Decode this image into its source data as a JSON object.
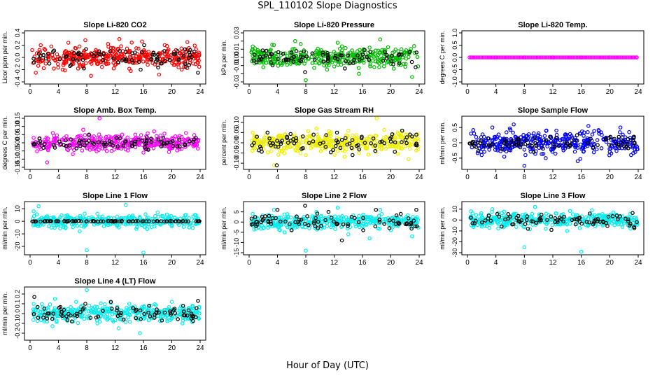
{
  "page": {
    "title": "SPL_110102  Slope Diagnostics",
    "xlabel": "Hour of Day (UTC)"
  },
  "chart_data": [
    {
      "type": "scatter",
      "title": "Slope Li-820 CO2",
      "ylabel": "Licor ppm per min.",
      "color": "#ff0000",
      "xlim": [
        0,
        24
      ],
      "ylim": [
        -0.4,
        0.4
      ],
      "xticks": [
        0,
        4,
        8,
        12,
        16,
        20,
        24
      ],
      "yticks": [
        -0.4,
        -0.2,
        0.0,
        0.2,
        0.4
      ],
      "ytick_labels": [
        "-0.4",
        "-0.2",
        "0.0",
        "0.2",
        "0.4"
      ],
      "spread": 0.16,
      "black_spread": 0.14,
      "seed": 11,
      "series": [
        {
          "color": "#ff0000",
          "x": [
            0.3,
            0.8,
            1.5,
            2.2,
            3.0,
            3.8,
            4.6,
            5.4,
            6.2,
            7.0,
            7.8,
            8.6,
            9.4,
            10.2,
            11.0,
            11.8,
            12.6,
            13.4,
            14.2,
            15.0,
            15.8,
            16.6,
            17.4,
            18.2,
            19.0,
            19.8,
            20.6,
            21.4,
            22.2,
            23.0,
            23.8
          ],
          "y": [
            0.12,
            -0.25,
            0.2,
            -0.1,
            0.18,
            0.05,
            -0.2,
            0.24,
            0.02,
            -0.12,
            0.28,
            -0.3,
            0.1,
            -0.05,
            0.22,
            -0.18,
            0.3,
            0.0,
            -0.22,
            0.15,
            0.26,
            -0.12,
            0.08,
            -0.28,
            0.2,
            -0.05,
            0.12,
            -0.2,
            0.25,
            -0.1,
            0.05
          ]
        },
        {
          "color": "#000000",
          "x": [
            0.5,
            1.9,
            4.2,
            6.8,
            7.6,
            9.0,
            11.3,
            13.0,
            14.8,
            15.6,
            16.1,
            18.5,
            20.3,
            22.6,
            23.7
          ],
          "y": [
            -0.02,
            0.04,
            -0.03,
            0.05,
            -0.18,
            0.02,
            0.1,
            -0.05,
            0.08,
            -0.2,
            0.2,
            -0.1,
            0.06,
            0.12,
            -0.25
          ]
        }
      ]
    },
    {
      "type": "scatter",
      "title": "Slope Li-820 Pressure",
      "ylabel": "kPa per min.",
      "color": "#00bb00",
      "xlim": [
        0,
        24
      ],
      "ylim": [
        -0.03,
        0.03
      ],
      "xticks": [
        0,
        4,
        8,
        12,
        16,
        20,
        24
      ],
      "yticks": [
        -0.03,
        -0.01,
        0.01,
        0.03
      ],
      "ytick_labels": [
        "-0.03",
        "-0.01",
        "0.01",
        "0.03"
      ],
      "ytick_minor": [
        -0.02,
        0.0,
        0.02
      ],
      "ytick_minor_labels": [
        "",
        "0.00",
        ""
      ],
      "spread": 0.011,
      "black_spread": 0.009,
      "seed": 23,
      "series": [
        {
          "color": "#00bb00",
          "x": [
            0.5,
            2.0,
            3.5,
            5.0,
            6.5,
            8.0,
            9.5,
            11.0,
            12.5,
            14.0,
            15.5,
            17.0,
            18.5,
            20.0,
            21.5,
            23.0
          ],
          "y": [
            0.01,
            -0.012,
            0.015,
            -0.005,
            0.02,
            -0.028,
            0.008,
            -0.015,
            0.018,
            0.005,
            -0.02,
            0.012,
            0.022,
            -0.008,
            0.01,
            -0.024
          ]
        },
        {
          "color": "#000000",
          "x": [
            1.0,
            3.2,
            5.6,
            7.9,
            10.4,
            12.2,
            14.7,
            16.3,
            18.9,
            21.1,
            23.5
          ],
          "y": [
            -0.006,
            0.004,
            -0.003,
            -0.018,
            0.006,
            0.002,
            -0.007,
            0.009,
            -0.004,
            0.003,
            -0.012
          ]
        }
      ]
    },
    {
      "type": "scatter",
      "title": "Slope Li-820 Temp.",
      "ylabel": "degrees C per min.",
      "color": "#ff00ff",
      "xlim": [
        0,
        24
      ],
      "ylim": [
        -1.0,
        1.0
      ],
      "xticks": [
        0,
        4,
        8,
        12,
        16,
        20,
        24
      ],
      "yticks": [
        -1.0,
        -0.5,
        0.0,
        0.5,
        1.0
      ],
      "ytick_labels": [
        "-1.0",
        "-0.5",
        "0.0",
        "0.5",
        "1.0"
      ],
      "spread": 0.0,
      "black_spread": 0.0,
      "seed": 5,
      "series": [
        {
          "color": "#ff00ff",
          "x": [
            0.5,
            4,
            8,
            12,
            16,
            20,
            23.8
          ],
          "y": [
            0,
            0,
            0,
            0,
            0,
            0,
            0
          ]
        }
      ]
    },
    {
      "type": "scatter",
      "title": "Slope Amb. Box Temp.",
      "ylabel": "degrees C per min.",
      "color": "#ff00ff",
      "xlim": [
        0,
        24
      ],
      "ylim": [
        -0.15,
        0.15
      ],
      "xticks": [
        0,
        4,
        8,
        12,
        16,
        20,
        24
      ],
      "yticks": [
        -0.15,
        -0.1,
        -0.05,
        0.0,
        0.05,
        0.1,
        0.15
      ],
      "ytick_labels": [
        "-0.15",
        "-0.10",
        "-0.05",
        "0.00",
        "0.05",
        "0.10",
        "0.15"
      ],
      "spread": 0.045,
      "black_spread": 0.035,
      "seed": 37,
      "series": [
        {
          "color": "#ff00ff",
          "x": [
            0.5,
            1.5,
            2.4,
            3.2,
            4.5,
            6.0,
            7.5,
            9.0,
            9.8,
            11.5,
            13.0,
            14.5,
            16.0,
            17.5,
            19.0,
            20.5,
            22.0,
            23.5
          ],
          "y": [
            0.03,
            -0.04,
            -0.12,
            0.06,
            0.02,
            -0.03,
            0.08,
            0.04,
            0.15,
            -0.05,
            0.05,
            0.01,
            -0.06,
            0.07,
            -0.02,
            0.04,
            0.06,
            -0.01
          ]
        },
        {
          "color": "#000000",
          "x": [
            1.2,
            3.5,
            5.8,
            7.1,
            8.3,
            10.4,
            12.2,
            14.3,
            16.4,
            18.1,
            20.2,
            22.5,
            23.4
          ],
          "y": [
            0.0,
            -0.03,
            0.02,
            -0.02,
            0.05,
            -0.01,
            0.03,
            0.0,
            -0.04,
            0.02,
            -0.02,
            0.01,
            0.03
          ]
        }
      ]
    },
    {
      "type": "scatter",
      "title": "Slope Gas Stream RH",
      "ylabel": "percent per min.",
      "color": "#ffff00",
      "xlim": [
        0,
        24
      ],
      "ylim": [
        -0.12,
        0.12
      ],
      "xticks": [
        0,
        4,
        8,
        12,
        16,
        20,
        24
      ],
      "yticks": [
        -0.1,
        -0.05,
        0.0,
        0.05,
        0.1
      ],
      "ytick_labels": [
        "-0.10",
        "-0.05",
        "0.00",
        "0.05",
        "0.10"
      ],
      "spread": 0.045,
      "black_spread": 0.04,
      "seed": 41,
      "series": [
        {
          "color": "#eeee00",
          "x": [
            0.5,
            2.0,
            3.5,
            5.0,
            6.5,
            8.0,
            9.5,
            11.0,
            12.5,
            14.0,
            15.5,
            17.0,
            18.0,
            19.5,
            21.0,
            22.5,
            23.8
          ],
          "y": [
            0.05,
            -0.03,
            -0.11,
            0.04,
            0.02,
            -0.06,
            0.07,
            0.0,
            -0.04,
            0.06,
            -0.05,
            0.03,
            0.12,
            -0.02,
            0.05,
            -0.08,
            0.02
          ]
        },
        {
          "color": "#000000",
          "x": [
            1.1,
            2.6,
            3.9,
            5.5,
            7.4,
            9.1,
            10.8,
            12.4,
            14.6,
            15.9,
            17.8,
            19.9,
            21.6,
            23.6
          ],
          "y": [
            0.03,
            0.05,
            -0.11,
            0.0,
            -0.03,
            0.04,
            -0.02,
            0.05,
            -0.06,
            0.03,
            -0.04,
            0.02,
            0.06,
            0.04
          ]
        }
      ]
    },
    {
      "type": "scatter",
      "title": "Slope Sample Flow",
      "ylabel": "ml/min per min.",
      "color": "#0000ff",
      "xlim": [
        0,
        24
      ],
      "ylim": [
        -0.8,
        0.8
      ],
      "xticks": [
        0,
        4,
        8,
        12,
        16,
        20,
        24
      ],
      "yticks": [
        -0.5,
        0.0,
        0.5
      ],
      "ytick_labels": [
        "-0.5",
        "0.0",
        "0.5"
      ],
      "spread": 0.35,
      "black_spread": 0.22,
      "seed": 53,
      "series": [
        {
          "color": "#0000ff",
          "x": [
            0.5,
            2.0,
            3.5,
            5.0,
            6.5,
            8.0,
            9.5,
            11.0,
            12.5,
            14.0,
            15.5,
            17.0,
            18.5,
            20.0,
            21.5,
            23.0
          ],
          "y": [
            0.3,
            -0.4,
            0.5,
            -0.2,
            0.6,
            -0.75,
            0.2,
            -0.5,
            0.4,
            0.1,
            -0.6,
            0.55,
            0.3,
            -0.3,
            0.5,
            -0.4
          ]
        },
        {
          "color": "#000000",
          "x": [
            1.0,
            2.9,
            4.8,
            7.2,
            9.3,
            11.6,
            13.9,
            15.4,
            17.7,
            19.5,
            21.8,
            23.4
          ],
          "y": [
            -0.1,
            0.15,
            -0.2,
            0.05,
            -0.3,
            0.2,
            -0.1,
            0.25,
            -0.15,
            0.1,
            -0.05,
            0.2
          ]
        }
      ]
    },
    {
      "type": "scatter",
      "title": "Slope Line 1 Flow",
      "ylabel": "ml/min per min.",
      "color": "#00eeee",
      "xlim": [
        0,
        24
      ],
      "ylim": [
        -25,
        14
      ],
      "xticks": [
        0,
        4,
        8,
        12,
        16,
        20,
        24
      ],
      "yticks": [
        -20,
        -10,
        0,
        10
      ],
      "ytick_labels": [
        "-20",
        "-10",
        "0",
        "10"
      ],
      "spread": 4.5,
      "black_spread": 0.3,
      "seed": 61,
      "series": [
        {
          "color": "#00eeee",
          "x": [
            0.5,
            1.2,
            3.0,
            5.0,
            7.0,
            8.0,
            9.5,
            11.0,
            13.5,
            15.0,
            16.0,
            18.0,
            20.0,
            22.0,
            23.5
          ],
          "y": [
            8,
            12,
            -5,
            4,
            -8,
            -23,
            6,
            -3,
            13,
            -6,
            -25,
            7,
            -4,
            5,
            -2
          ]
        },
        {
          "color": "#000000",
          "x": [
            0.5,
            2,
            4,
            6,
            8,
            10,
            12,
            14,
            16,
            18,
            20,
            22,
            23.8
          ],
          "y": [
            0,
            0,
            0,
            0,
            0,
            0,
            0,
            0,
            0,
            0,
            0,
            0,
            0
          ]
        }
      ]
    },
    {
      "type": "scatter",
      "title": "Slope Line 2 Flow",
      "ylabel": "ml/min per min.",
      "color": "#00eeee",
      "xlim": [
        0,
        24
      ],
      "ylim": [
        -15,
        9
      ],
      "xticks": [
        0,
        4,
        8,
        12,
        16,
        20,
        24
      ],
      "yticks": [
        -15,
        -10,
        -5,
        0,
        5
      ],
      "ytick_labels": [
        "-15",
        "-10",
        "-5",
        "0",
        "5"
      ],
      "spread": 3.2,
      "black_spread": 3.2,
      "seed": 71,
      "series": [
        {
          "color": "#00eeee",
          "x": [
            0.5,
            2.0,
            3.5,
            5.0,
            6.5,
            8.0,
            9.5,
            11.0,
            12.5,
            14.0,
            15.5,
            17.0,
            18.5,
            20.0,
            21.5,
            23.0
          ],
          "y": [
            4,
            -3,
            6,
            -5,
            2,
            -14,
            5,
            -2,
            7,
            -6,
            3,
            -8,
            6,
            -4,
            2,
            -7
          ]
        },
        {
          "color": "#000000",
          "x": [
            1.0,
            2.8,
            4.0,
            6.0,
            7.9,
            9.7,
            11.2,
            13.1,
            14.9,
            16.1,
            17.9,
            19.8,
            21.4,
            22.9,
            23.6
          ],
          "y": [
            -2,
            3,
            6,
            -4,
            8,
            -3,
            5,
            -9,
            2,
            -4,
            6,
            -3,
            4,
            -1,
            6
          ]
        }
      ]
    },
    {
      "type": "scatter",
      "title": "Slope Line 3 Flow",
      "ylabel": "ml/min per min.",
      "color": "#00eeee",
      "xlim": [
        0,
        24
      ],
      "ylim": [
        -30,
        15
      ],
      "xticks": [
        0,
        4,
        8,
        12,
        16,
        20,
        24
      ],
      "yticks": [
        -30,
        -20,
        -10,
        0,
        10
      ],
      "ytick_labels": [
        "-30",
        "-20",
        "-10",
        "0",
        "10"
      ],
      "spread": 6.0,
      "black_spread": 5.5,
      "seed": 83,
      "series": [
        {
          "color": "#00eeee",
          "x": [
            0.5,
            2.0,
            3.5,
            5.0,
            6.5,
            8.0,
            9.5,
            11.0,
            12.5,
            14.0,
            15.5,
            16.0,
            17.5,
            19.0,
            20.5,
            22.0,
            23.5
          ],
          "y": [
            8,
            -6,
            10,
            -4,
            5,
            -25,
            12,
            -8,
            6,
            -10,
            4,
            -29,
            9,
            -5,
            7,
            -3,
            2
          ]
        },
        {
          "color": "#000000",
          "x": [
            1.0,
            3.0,
            4.8,
            6.9,
            8.5,
            10.4,
            11.8,
            13.6,
            15.2,
            17.2,
            19.1,
            21.0,
            22.8,
            23.8
          ],
          "y": [
            -3,
            4,
            -6,
            2,
            -8,
            5,
            -9,
            3,
            -4,
            6,
            -2,
            4,
            -5,
            -2
          ]
        }
      ]
    },
    {
      "type": "scatter",
      "title": "Slope Line 4 (LT) Flow",
      "ylabel": "ml/min per min.",
      "color": "#00eeee",
      "xlim": [
        0,
        24
      ],
      "ylim": [
        -0.25,
        0.25
      ],
      "xticks": [
        0,
        4,
        8,
        12,
        16,
        20,
        24
      ],
      "yticks": [
        -0.2,
        -0.1,
        0.0,
        0.1,
        0.2
      ],
      "ytick_labels": [
        "-0.2",
        "-0.1",
        "0.0",
        "0.1",
        "0.2"
      ],
      "spread": 0.08,
      "black_spread": 0.07,
      "seed": 97,
      "series": [
        {
          "color": "#00eeee",
          "x": [
            0.5,
            2.0,
            3.5,
            5.0,
            6.5,
            8.0,
            9.5,
            11.0,
            12.5,
            14.0,
            15.5,
            17.0,
            18.5,
            20.0,
            21.5,
            23.0
          ],
          "y": [
            0.1,
            -0.08,
            0.15,
            -0.05,
            0.12,
            0.24,
            -0.1,
            0.05,
            -0.15,
            0.1,
            -0.2,
            0.08,
            -0.05,
            0.12,
            -0.1,
            0.05
          ]
        },
        {
          "color": "#000000",
          "x": [
            0.6,
            2.4,
            4.1,
            5.9,
            7.8,
            9.6,
            11.4,
            13.2,
            15.0,
            16.8,
            18.6,
            20.4,
            22.2,
            23.7
          ],
          "y": [
            0.17,
            -0.05,
            0.06,
            -0.08,
            0.1,
            -0.03,
            0.12,
            -0.06,
            0.04,
            0.08,
            -0.07,
            0.05,
            -0.02,
            0.13
          ]
        }
      ]
    }
  ]
}
